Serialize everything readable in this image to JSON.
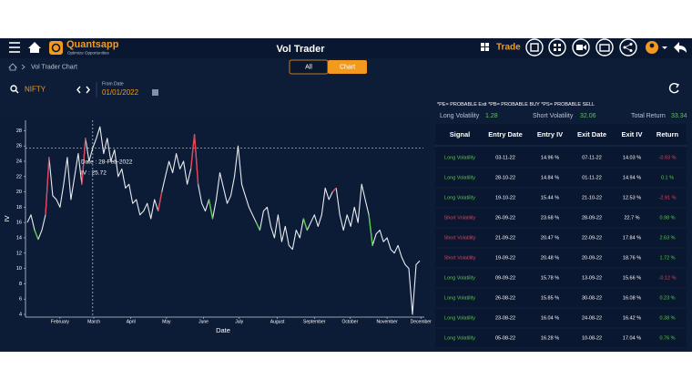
{
  "header": {
    "brand": "Quantsapp",
    "tagline": "Optimize Opportunities",
    "title": "Vol Trader",
    "menu": "Trade"
  },
  "breadcrumb": "Vol Trader Chart",
  "tabs": [
    "All",
    "Chart"
  ],
  "filters": {
    "symbol": "NIFTY",
    "from_label": "From Date",
    "from_date": "01/01/2022"
  },
  "legend_note": "*PE= PROBABLE Exit  *PB= PROBABLE BUY  *PS= PROBABLE SELL",
  "summary": [
    {
      "label": "Long Volatility",
      "value": 1.28
    },
    {
      "label": "Short Volatility",
      "value": 32.06
    },
    {
      "label": "Total Return",
      "value": 33.34
    }
  ],
  "chart_data": {
    "type": "line",
    "x_label": "Date",
    "y_label": "IV",
    "xlim": [
      0,
      108.5
    ],
    "xticks": [
      {
        "value": 9,
        "label": "February"
      },
      {
        "value": 18.3,
        "label": "March"
      },
      {
        "value": 28.5,
        "label": "April"
      },
      {
        "value": 38.3,
        "label": "May"
      },
      {
        "value": 48.5,
        "label": "June"
      },
      {
        "value": 58.3,
        "label": "July"
      },
      {
        "value": 68.8,
        "label": "August"
      },
      {
        "value": 79,
        "label": "September"
      },
      {
        "value": 88.8,
        "label": "October"
      },
      {
        "value": 99,
        "label": "November"
      },
      {
        "value": 108.3,
        "label": "December"
      }
    ],
    "ylim": [
      4,
      29
    ],
    "yticks": [
      4,
      6,
      8,
      10,
      12,
      14,
      16,
      18,
      20,
      22,
      24,
      26,
      28
    ],
    "series": [
      {
        "color": "#e8ecf2",
        "values": [
          16,
          17,
          15,
          13.8,
          15,
          17,
          24.5,
          19.5,
          19,
          18,
          21,
          24.5,
          19,
          22,
          25,
          21,
          27,
          24,
          25.72,
          27,
          28.5,
          25,
          27,
          24,
          25.5,
          22,
          23,
          20.5,
          21,
          18.5,
          19,
          17,
          17.5,
          18.5,
          16.5,
          19,
          17.5,
          20,
          22,
          24,
          22.5,
          25,
          23,
          24,
          21,
          23,
          27.5,
          21,
          18.5,
          17.5,
          19,
          16.5,
          19,
          22.5,
          20.5,
          18.5,
          19.5,
          22,
          26,
          21,
          19.5,
          18,
          17,
          16,
          15,
          17.5,
          18,
          15.5,
          14,
          17,
          13.5,
          15.5,
          13,
          12.5,
          15,
          14,
          16.5,
          15,
          16,
          17,
          15.5,
          17,
          20.5,
          19,
          20,
          20.5,
          17,
          15,
          17,
          15.5,
          18,
          16,
          21,
          19,
          17,
          13,
          14.5,
          15,
          13.5,
          14,
          12.5,
          12,
          13,
          11.5,
          10.5,
          10,
          4,
          10.5,
          11
        ]
      },
      {
        "color": "#e0455a",
        "x": [
          5,
          6
        ],
        "values": [
          17,
          24.5
        ]
      },
      {
        "color": "#e0455a",
        "x": [
          15,
          16
        ],
        "values": [
          21,
          27
        ]
      },
      {
        "color": "#e0455a",
        "x": [
          36,
          37
        ],
        "values": [
          17.5,
          20
        ]
      },
      {
        "color": "#e0455a",
        "x": [
          45,
          46,
          47
        ],
        "values": [
          23,
          27.5,
          21
        ]
      },
      {
        "color": "#e0455a",
        "x": [
          84,
          85
        ],
        "values": [
          20,
          20.5
        ]
      },
      {
        "color": "#58c94a",
        "x": [
          2,
          3
        ],
        "values": [
          15,
          13.8
        ]
      },
      {
        "color": "#58c94a",
        "x": [
          50,
          51
        ],
        "values": [
          19,
          16.5
        ]
      },
      {
        "color": "#58c94a",
        "x": [
          63,
          64
        ],
        "values": [
          16,
          15
        ]
      },
      {
        "color": "#58c94a",
        "x": [
          76,
          77
        ],
        "values": [
          16.5,
          15
        ]
      },
      {
        "color": "#58c94a",
        "x": [
          94,
          95
        ],
        "values": [
          17,
          13
        ]
      }
    ],
    "tooltip": {
      "index": 18,
      "date": "Date : 28-Feb-2022",
      "iv": "IV : 25.72"
    }
  },
  "table": {
    "columns": [
      "Signal",
      "Entry Date",
      "Entry IV",
      "Exit Date",
      "Exit IV",
      "Return"
    ],
    "rows": [
      [
        "Long Volatility",
        "03-11-22",
        "14.96 %",
        "07-11-22",
        "14.03 %",
        "-0.93 %"
      ],
      [
        "Long Volatility",
        "28-10-22",
        "14.84 %",
        "01-11-22",
        "14.94 %",
        "0.1 %"
      ],
      [
        "Long Volatility",
        "19-10-22",
        "15.44 %",
        "21-10-22",
        "12.53 %",
        "-2.91 %"
      ],
      [
        "Short Volatility",
        "26-09-22",
        "23.68 %",
        "28-09-22",
        "22.7 %",
        "0.98 %"
      ],
      [
        "Short Volatility",
        "21-09-22",
        "20.47 %",
        "22-09-22",
        "17.84 %",
        "2.63 %"
      ],
      [
        "Short Volatility",
        "19-09-22",
        "20.48 %",
        "20-09-22",
        "18.76 %",
        "1.72 %"
      ],
      [
        "Long Volatility",
        "09-09-22",
        "15.78 %",
        "13-09-22",
        "15.66 %",
        "-0.12 %"
      ],
      [
        "Long Volatility",
        "26-08-22",
        "15.85 %",
        "30-08-22",
        "16.08 %",
        "0.23 %"
      ],
      [
        "Long Volatility",
        "23-08-22",
        "16.04 %",
        "24-08-22",
        "16.42 %",
        "0.38 %"
      ],
      [
        "Long Volatility",
        "05-08-22",
        "16.28 %",
        "10-08-22",
        "17.04 %",
        "0.76 %"
      ]
    ]
  }
}
